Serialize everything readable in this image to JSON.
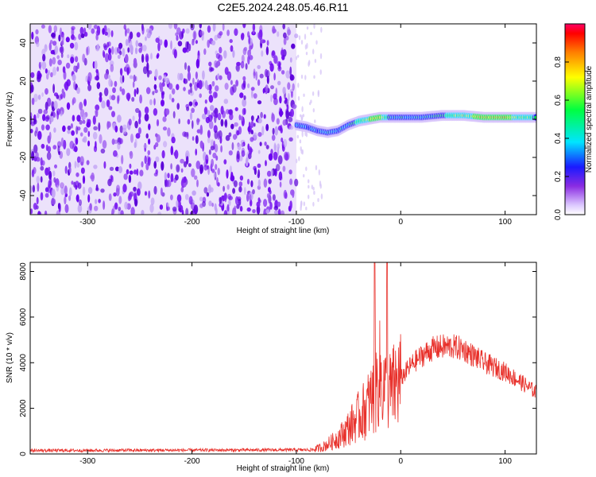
{
  "title": "C2E5.2024.248.05.46.R11",
  "chart_data": [
    {
      "type": "heatmap",
      "xlabel": "Height of straight line (km)",
      "ylabel": "Frequency (Hz)",
      "xlim": [
        -355,
        130
      ],
      "ylim": [
        -50,
        50
      ],
      "xticks": [
        -300,
        -200,
        -100,
        0,
        100
      ],
      "yticks": [
        -40,
        -20,
        0,
        20,
        40
      ],
      "colorbar": {
        "label": "Normalized spectral amplitude",
        "range": [
          0,
          1
        ],
        "ticks": [
          0.0,
          0.2,
          0.4,
          0.6,
          0.8
        ],
        "tick_labels": [
          "0.0",
          "0.2",
          "0.4",
          "0.6",
          "0.8"
        ]
      },
      "features": {
        "noise_region_x": [
          -355,
          -100
        ],
        "faint_tail_x": [
          -100,
          -75
        ],
        "signal_track": {
          "x": [
            -100,
            -90,
            -80,
            -70,
            -60,
            -50,
            -40,
            -30,
            -20,
            -10,
            0,
            20,
            40,
            60,
            80,
            100,
            120,
            130
          ],
          "frequency": [
            -3,
            -4,
            -6,
            -7,
            -6,
            -3,
            -1,
            0,
            1,
            1,
            1,
            1,
            2,
            2,
            1,
            1,
            1,
            1
          ],
          "amplitude": [
            0.45,
            0.4,
            0.45,
            0.5,
            0.45,
            0.5,
            0.7,
            0.8,
            0.85,
            0.6,
            0.5,
            0.55,
            0.6,
            0.75,
            0.85,
            0.85,
            0.7,
            0.6
          ]
        }
      }
    },
    {
      "type": "line",
      "xlabel": "Height of straight line (km)",
      "ylabel": "SNR (10 * v/v)",
      "xlim": [
        -355,
        130
      ],
      "ylim": [
        0,
        8400
      ],
      "xticks": [
        -300,
        -200,
        -100,
        0,
        100
      ],
      "yticks": [
        0,
        2000,
        4000,
        6000,
        8000
      ],
      "color": "#e8302a",
      "envelope": {
        "x": [
          -355,
          -250,
          -150,
          -85,
          -75,
          -65,
          -55,
          -45,
          -35,
          -25,
          -20,
          -15,
          -10,
          0,
          10,
          20,
          30,
          40,
          50,
          60,
          70,
          80,
          90,
          100,
          110,
          120,
          130
        ],
        "y": [
          150,
          160,
          170,
          180,
          300,
          550,
          900,
          1400,
          1900,
          2600,
          3500,
          2800,
          2700,
          3300,
          3900,
          4300,
          4600,
          4700,
          4700,
          4600,
          4300,
          4000,
          3800,
          3600,
          3300,
          3000,
          2700
        ]
      },
      "spikes": [
        {
          "x": -25,
          "y": 8400
        },
        {
          "x": -13,
          "y": 8400
        }
      ]
    }
  ]
}
